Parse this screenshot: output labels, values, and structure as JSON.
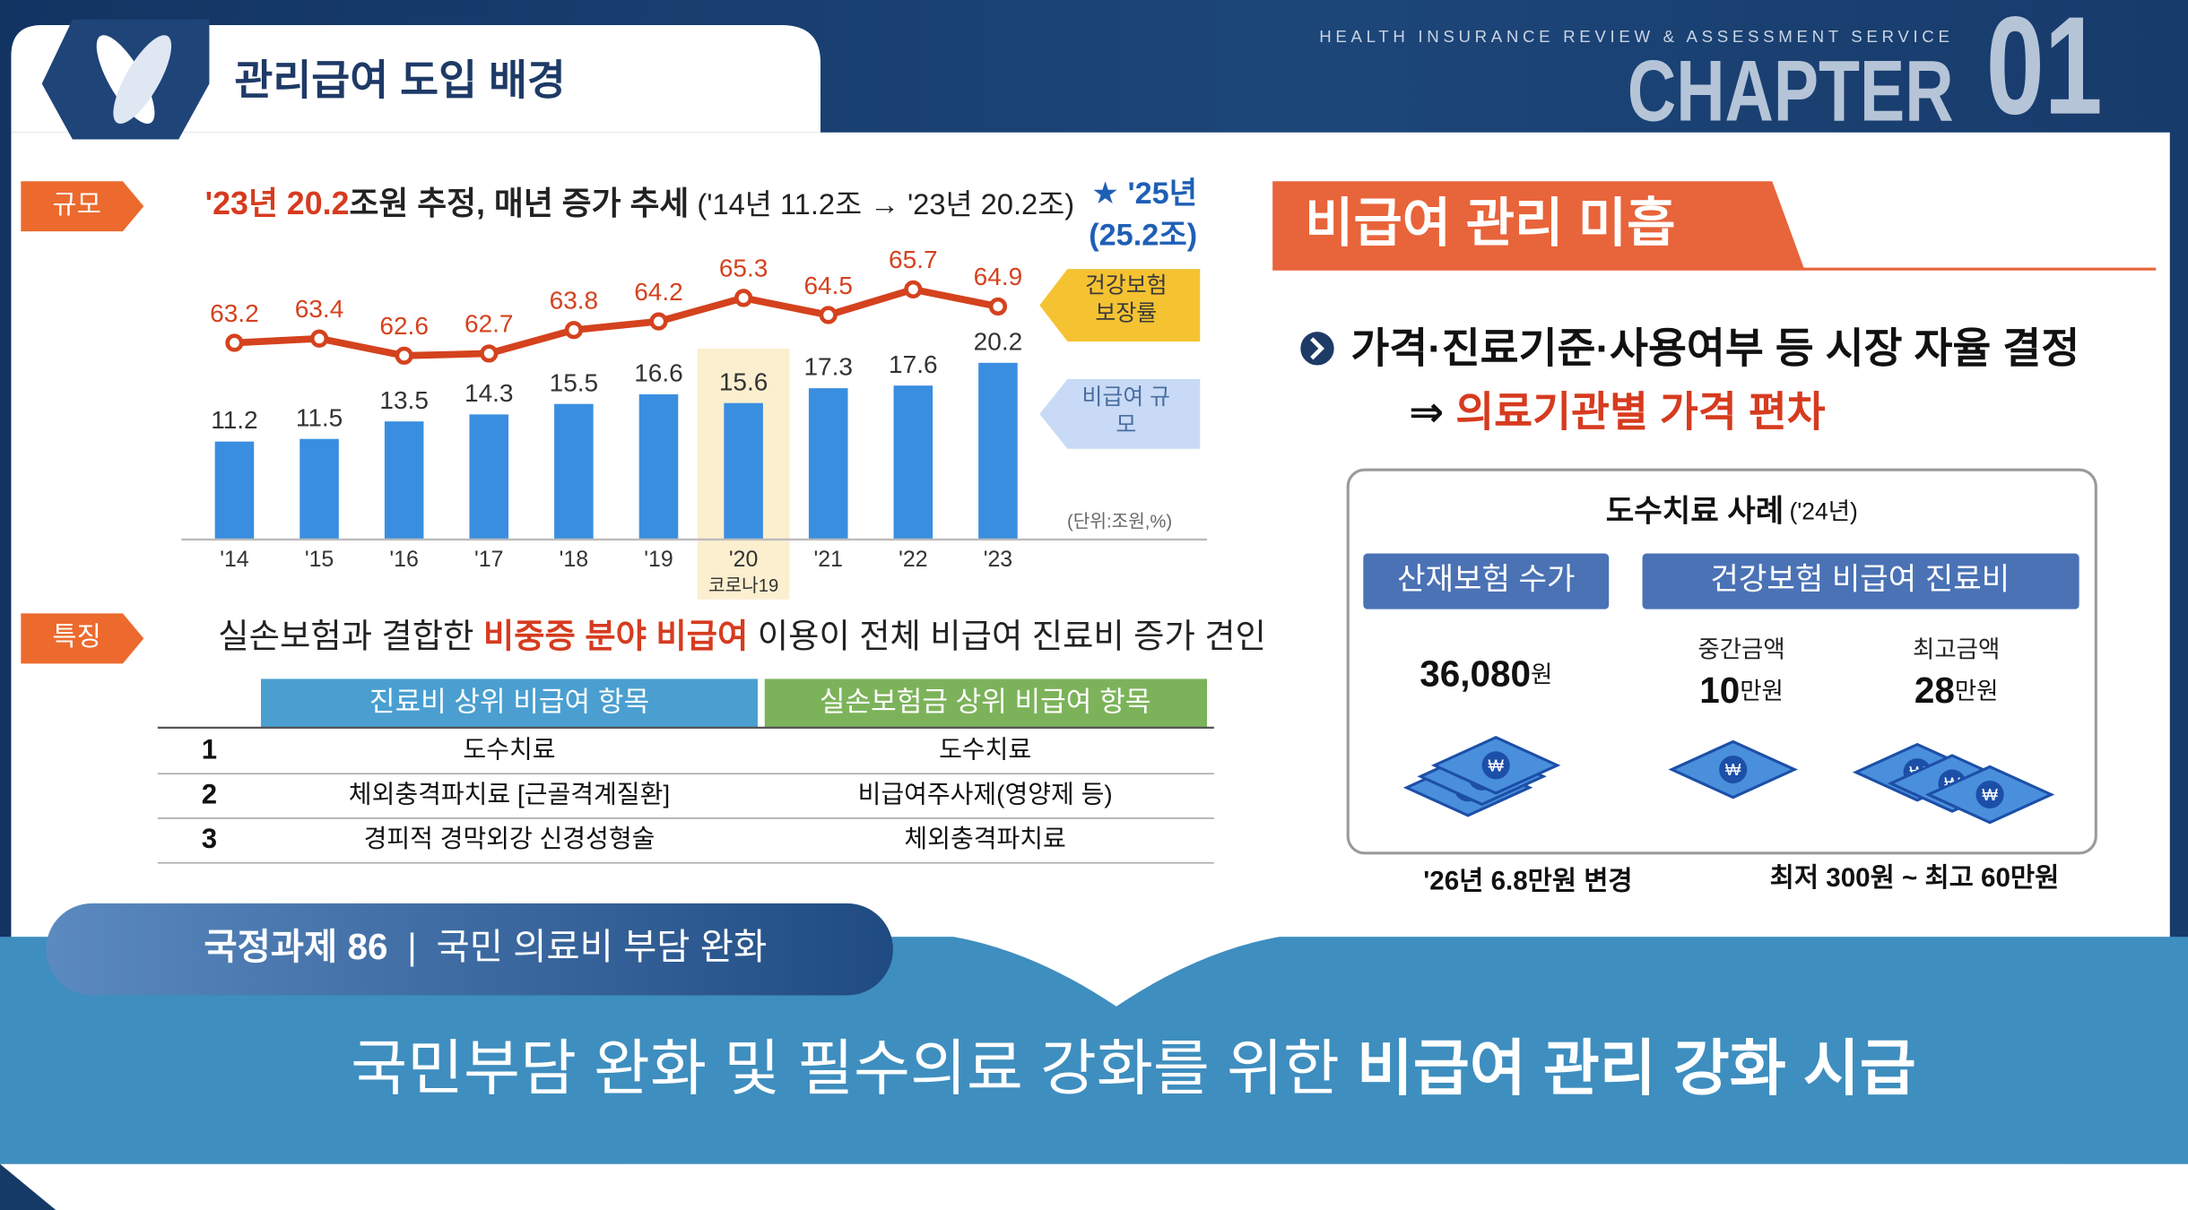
{
  "header": {
    "title": "관리급여 도입 배경",
    "org": "HEALTH INSURANCE REVIEW & ASSESSMENT SERVICE",
    "chapter": "CHAPTER",
    "chapter_no": "01"
  },
  "chart_data": {
    "type": "bar",
    "tag": "규모",
    "title_parts": [
      "'23년 20.2",
      "조원 추정, 매년 증가 추세",
      " ('14년 11.2조 → '23년 20.2조)"
    ],
    "forecast": [
      "★ '25년",
      "(25.2조)"
    ],
    "unit": "(단위:조원,%)",
    "highlight": {
      "category": "'20",
      "label": "코로나19"
    },
    "categories": [
      "'14",
      "'15",
      "'16",
      "'17",
      "'18",
      "'19",
      "'20",
      "'21",
      "'22",
      "'23"
    ],
    "series": [
      {
        "name": "비급여 규모",
        "color": "#3a8ee0",
        "values": [
          11.2,
          11.5,
          13.5,
          14.3,
          15.5,
          16.6,
          15.6,
          17.3,
          17.6,
          20.2
        ]
      },
      {
        "name": "건강보험 보장률",
        "color": "#d4421e",
        "type": "line",
        "axis": "y2",
        "values": [
          63.2,
          63.4,
          62.6,
          62.7,
          63.8,
          64.2,
          65.3,
          64.5,
          65.7,
          64.9
        ]
      }
    ],
    "ylim": [
      0,
      33
    ],
    "y2lim": [
      54,
      67.5
    ]
  },
  "feature": {
    "tag": "특징",
    "parts": [
      "실손보험과 결합한 ",
      "비중증 분야 비급여",
      " 이용이 전체 비급여 진료비 증가 견인"
    ]
  },
  "table": {
    "headers": [
      "진료비 상위 비급여 항목",
      "실손보험금 상위 비급여 항목"
    ],
    "rows": [
      [
        "1",
        "도수치료",
        "도수치료"
      ],
      [
        "2",
        "체외충격파치료 [근골격계질환]",
        "비급여주사제(영양제 등)"
      ],
      [
        "3",
        "경피적 경막외강 신경성형술",
        "체외충격파치료"
      ]
    ]
  },
  "right": {
    "title": "비급여 관리 미흡",
    "bullet": "가격·진료기준·사용여부 등 시장 자율 결정",
    "result": [
      "⇒ ",
      "의료기관별 가격 편차"
    ],
    "case_title": "도수치료 사례",
    "case_year": "('24년)",
    "case_headers": [
      "산재보험 수가",
      "건강보험 비급여 진료비"
    ],
    "amounts": [
      {
        "amount": "36,080",
        "unit": "원"
      },
      {
        "caption": "중간금액",
        "amount": "10",
        "unit": "만원"
      },
      {
        "caption": "최고금액",
        "amount": "28",
        "unit": "만원"
      }
    ],
    "notes": [
      "'26년 6.8만원 변경",
      "최저 300원 ~ 최고 60만원"
    ]
  },
  "banner": {
    "task": [
      "국정과제 86",
      "|",
      "국민 의료비 부담 완화"
    ],
    "conclusion": [
      "국민부담 완화 및 필수의료 강화를 위한 ",
      "비급여 관리 강화 시급"
    ]
  }
}
